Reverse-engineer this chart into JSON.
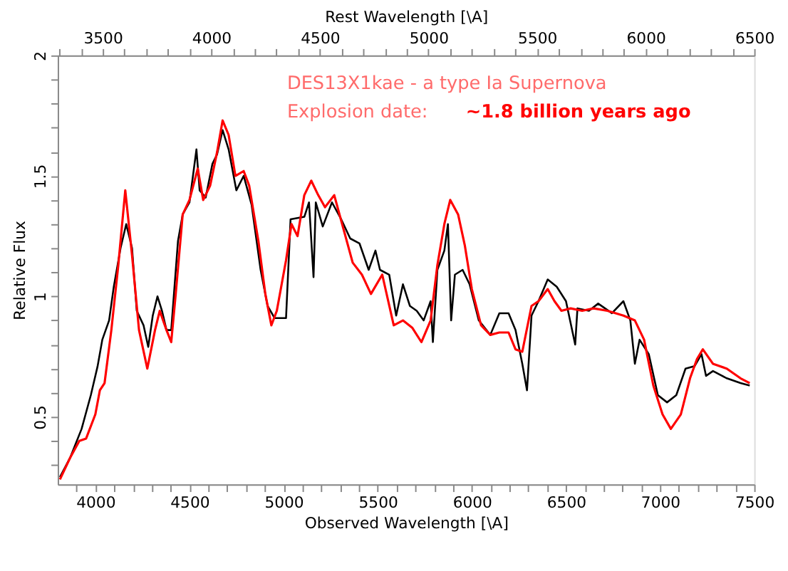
{
  "chart_data": {
    "type": "line",
    "xlabel": "Observed Wavelength [\\A]",
    "ylabel": "Relative Flux",
    "x2label": "Rest Wavelength [\\A]",
    "annotations": [
      "DES13X1kae - a type Ia Supernova",
      "Explosion date:",
      "~1.8 billion years ago"
    ],
    "xlim": [
      3800,
      7500
    ],
    "ylim": [
      0.22,
      2
    ],
    "x2lim": [
      3293,
      6500
    ],
    "xticks": [
      {
        "value": 3900,
        "label": null
      },
      4000,
      {
        "value": 4100,
        "label": null
      },
      {
        "value": 4200,
        "label": null
      },
      {
        "value": 4300,
        "label": null
      },
      {
        "value": 4400,
        "label": null
      },
      4500,
      {
        "value": 4600,
        "label": null
      },
      {
        "value": 4700,
        "label": null
      },
      {
        "value": 4800,
        "label": null
      },
      {
        "value": 4900,
        "label": null
      },
      5000,
      {
        "value": 5100,
        "label": null
      },
      {
        "value": 5200,
        "label": null
      },
      {
        "value": 5300,
        "label": null
      },
      {
        "value": 5400,
        "label": null
      },
      5500,
      {
        "value": 5600,
        "label": null
      },
      {
        "value": 5700,
        "label": null
      },
      {
        "value": 5800,
        "label": null
      },
      {
        "value": 5900,
        "label": null
      },
      6000,
      {
        "value": 6100,
        "label": null
      },
      {
        "value": 6200,
        "label": null
      },
      {
        "value": 6300,
        "label": null
      },
      {
        "value": 6400,
        "label": null
      },
      6500,
      {
        "value": 6600,
        "label": null
      },
      {
        "value": 6700,
        "label": null
      },
      {
        "value": 6800,
        "label": null
      },
      {
        "value": 6900,
        "label": null
      },
      7000,
      {
        "value": 7100,
        "label": null
      },
      {
        "value": 7200,
        "label": null
      },
      {
        "value": 7300,
        "label": null
      },
      {
        "value": 7400,
        "label": null
      },
      7500
    ],
    "x2ticks": [
      {
        "value": 3300,
        "label": null
      },
      {
        "value": 3400,
        "label": null
      },
      3500,
      {
        "value": 3600,
        "label": null
      },
      {
        "value": 3700,
        "label": null
      },
      {
        "value": 3800,
        "label": null
      },
      {
        "value": 3900,
        "label": null
      },
      4000,
      {
        "value": 4100,
        "label": null
      },
      {
        "value": 4200,
        "label": null
      },
      {
        "value": 4300,
        "label": null
      },
      {
        "value": 4400,
        "label": null
      },
      4500,
      {
        "value": 4600,
        "label": null
      },
      {
        "value": 4700,
        "label": null
      },
      {
        "value": 4800,
        "label": null
      },
      {
        "value": 4900,
        "label": null
      },
      5000,
      {
        "value": 5100,
        "label": null
      },
      {
        "value": 5200,
        "label": null
      },
      {
        "value": 5300,
        "label": null
      },
      {
        "value": 5400,
        "label": null
      },
      5500,
      {
        "value": 5600,
        "label": null
      },
      {
        "value": 5700,
        "label": null
      },
      {
        "value": 5800,
        "label": null
      },
      {
        "value": 5900,
        "label": null
      },
      6000,
      {
        "value": 6100,
        "label": null
      },
      {
        "value": 6200,
        "label": null
      },
      {
        "value": 6300,
        "label": null
      },
      {
        "value": 6400,
        "label": null
      },
      6500
    ],
    "yticks": [
      {
        "value": 0.3,
        "label": null
      },
      {
        "value": 0.4,
        "label": null
      },
      0.5,
      {
        "value": 0.6,
        "label": null
      },
      {
        "value": 0.7,
        "label": null
      },
      {
        "value": 0.8,
        "label": null
      },
      {
        "value": 0.9,
        "label": null
      },
      1,
      {
        "value": 1.1,
        "label": null
      },
      {
        "value": 1.2,
        "label": null
      },
      {
        "value": 1.3,
        "label": null
      },
      {
        "value": 1.4,
        "label": null
      },
      1.5,
      {
        "value": 1.6,
        "label": null
      },
      {
        "value": 1.7,
        "label": null
      },
      {
        "value": 1.8,
        "label": null
      },
      {
        "value": 1.9,
        "label": null
      },
      2
    ],
    "grid": false,
    "marker": "none",
    "line_style": "solid",
    "series": [
      {
        "color": "#000000",
        "x": [
          3812,
          3866,
          3927,
          3976,
          4012,
          4037,
          4073,
          4098,
          4134,
          4164,
          4195,
          4220,
          4256,
          4281,
          4305,
          4330,
          4354,
          4378,
          4403,
          4439,
          4464,
          4500,
          4537,
          4554,
          4586,
          4622,
          4647,
          4676,
          4708,
          4749,
          4788,
          4830,
          4878,
          4915,
          4952,
          5013,
          5037,
          5110,
          5135,
          5159,
          5171,
          5208,
          5257,
          5306,
          5354,
          5403,
          5452,
          5488,
          5512,
          5561,
          5598,
          5634,
          5671,
          5707,
          5744,
          5781,
          5793,
          5817,
          5854,
          5873,
          5890,
          5910,
          5951,
          5988,
          6037,
          6098,
          6146,
          6195,
          6232,
          6268,
          6293,
          6317,
          6354,
          6403,
          6451,
          6500,
          6549,
          6561,
          6622,
          6671,
          6744,
          6805,
          6842,
          6866,
          6891,
          6940,
          6988,
          7037,
          7086,
          7135,
          7183,
          7220,
          7244,
          7281,
          7354,
          7427,
          7476
        ],
        "values": [
          0.25,
          0.33,
          0.45,
          0.59,
          0.71,
          0.82,
          0.9,
          1.04,
          1.2,
          1.3,
          1.2,
          0.94,
          0.88,
          0.79,
          0.92,
          1.0,
          0.94,
          0.86,
          0.86,
          1.23,
          1.34,
          1.39,
          1.61,
          1.44,
          1.41,
          1.55,
          1.59,
          1.69,
          1.61,
          1.44,
          1.5,
          1.38,
          1.11,
          0.96,
          0.91,
          0.91,
          1.32,
          1.33,
          1.39,
          1.08,
          1.39,
          1.29,
          1.39,
          1.32,
          1.24,
          1.22,
          1.11,
          1.19,
          1.11,
          1.09,
          0.92,
          1.05,
          0.96,
          0.94,
          0.9,
          0.98,
          0.81,
          1.11,
          1.19,
          1.3,
          0.9,
          1.09,
          1.11,
          1.05,
          0.9,
          0.84,
          0.93,
          0.93,
          0.86,
          0.72,
          0.61,
          0.92,
          0.98,
          1.07,
          1.04,
          0.98,
          0.8,
          0.95,
          0.94,
          0.97,
          0.93,
          0.98,
          0.9,
          0.72,
          0.82,
          0.76,
          0.59,
          0.56,
          0.59,
          0.7,
          0.71,
          0.76,
          0.67,
          0.69,
          0.66,
          0.64,
          0.63
        ]
      },
      {
        "color": "#ff0000",
        "x": [
          3812,
          3866,
          3915,
          3951,
          4000,
          4024,
          4049,
          4085,
          4122,
          4159,
          4195,
          4232,
          4276,
          4317,
          4342,
          4378,
          4403,
          4427,
          4464,
          4500,
          4544,
          4573,
          4610,
          4647,
          4676,
          4708,
          4744,
          4788,
          4817,
          4866,
          4903,
          4935,
          4964,
          5013,
          5042,
          5074,
          5110,
          5147,
          5184,
          5220,
          5269,
          5318,
          5367,
          5416,
          5464,
          5524,
          5585,
          5634,
          5683,
          5732,
          5781,
          5817,
          5854,
          5885,
          5927,
          5963,
          6000,
          6049,
          6098,
          6146,
          6195,
          6232,
          6268,
          6317,
          6354,
          6403,
          6439,
          6476,
          6525,
          6586,
          6647,
          6720,
          6805,
          6866,
          6915,
          6964,
          7013,
          7057,
          7110,
          7159,
          7196,
          7227,
          7281,
          7354,
          7427,
          7476
        ],
        "values": [
          0.24,
          0.33,
          0.4,
          0.41,
          0.51,
          0.61,
          0.64,
          0.86,
          1.13,
          1.44,
          1.17,
          0.86,
          0.7,
          0.86,
          0.94,
          0.86,
          0.81,
          1.01,
          1.34,
          1.4,
          1.53,
          1.4,
          1.46,
          1.6,
          1.73,
          1.67,
          1.5,
          1.52,
          1.46,
          1.23,
          1.01,
          0.88,
          0.94,
          1.15,
          1.3,
          1.25,
          1.42,
          1.48,
          1.42,
          1.37,
          1.42,
          1.28,
          1.14,
          1.09,
          1.01,
          1.09,
          0.88,
          0.9,
          0.87,
          0.81,
          0.9,
          1.13,
          1.3,
          1.4,
          1.34,
          1.21,
          1.03,
          0.88,
          0.84,
          0.85,
          0.85,
          0.78,
          0.77,
          0.96,
          0.98,
          1.03,
          0.98,
          0.94,
          0.95,
          0.94,
          0.95,
          0.94,
          0.92,
          0.9,
          0.82,
          0.63,
          0.51,
          0.45,
          0.51,
          0.66,
          0.74,
          0.78,
          0.72,
          0.7,
          0.66,
          0.64
        ]
      }
    ]
  }
}
